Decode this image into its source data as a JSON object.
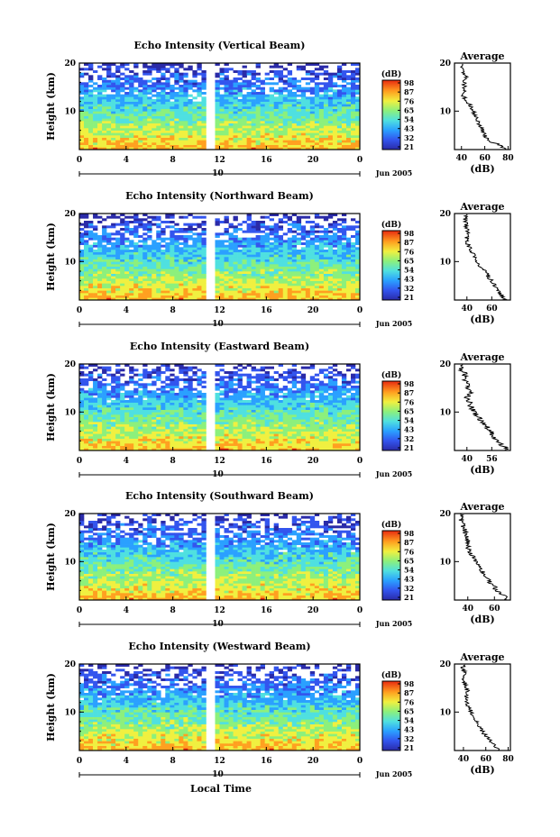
{
  "figure": {
    "xaxis_label": "Local Time"
  },
  "chart_data": [
    {
      "type": "heatmap",
      "title": "Echo Intensity (Vertical Beam)",
      "ylabel": "Height (km)",
      "x_ticks": [
        "0",
        "4",
        "8",
        "12",
        "16",
        "20",
        "0"
      ],
      "date_tick": "10",
      "date_label": "Jun 2005",
      "ylim": [
        2,
        20
      ],
      "y_ticks": [
        "10",
        "20"
      ],
      "xlim_hours": [
        0,
        24
      ],
      "data_gap_hours": [
        11.0,
        11.5
      ],
      "colorbar": {
        "label": "(dB)",
        "ticks": [
          "98",
          "87",
          "76",
          "65",
          "54",
          "43",
          "32",
          "21"
        ]
      },
      "profile": {
        "title": "Average",
        "xlabel": "(dB)",
        "x_ticks": [
          "40",
          "60",
          "80"
        ],
        "xlim": [
          34,
          82
        ],
        "y_ticks": [
          "10",
          "20"
        ],
        "heights": [
          2,
          3,
          4,
          5,
          6,
          7,
          8,
          9,
          10,
          11,
          12,
          13,
          14,
          15,
          16,
          17,
          18,
          19,
          20
        ],
        "values": [
          78,
          72,
          62,
          60,
          58,
          56,
          54,
          52,
          50,
          48,
          45,
          42,
          42,
          43,
          42,
          44,
          41,
          40,
          42
        ]
      }
    },
    {
      "type": "heatmap",
      "title": "Echo Intensity (Northward Beam)",
      "ylabel": "Height (km)",
      "x_ticks": [
        "0",
        "4",
        "8",
        "12",
        "16",
        "20",
        "0"
      ],
      "date_tick": "10",
      "date_label": "Jun 2005",
      "ylim": [
        2,
        20
      ],
      "y_ticks": [
        "10",
        "20"
      ],
      "xlim_hours": [
        0,
        24
      ],
      "data_gap_hours": [
        11.0,
        11.5
      ],
      "colorbar": {
        "label": "(dB)",
        "ticks": [
          "98",
          "87",
          "76",
          "65",
          "54",
          "43",
          "32",
          "21"
        ]
      },
      "profile": {
        "title": "Average",
        "xlabel": "(dB)",
        "x_ticks": [
          "40",
          "60"
        ],
        "xlim": [
          30,
          75
        ],
        "y_ticks": [
          "10",
          "20"
        ],
        "heights": [
          2,
          3,
          4,
          5,
          6,
          7,
          8,
          9,
          10,
          11,
          12,
          13,
          14,
          15,
          16,
          17,
          18,
          19,
          20
        ],
        "values": [
          70,
          68,
          65,
          62,
          60,
          57,
          54,
          50,
          48,
          46,
          44,
          42,
          40,
          40,
          41,
          39,
          40,
          38,
          39
        ]
      }
    },
    {
      "type": "heatmap",
      "title": "Echo Intensity (Eastward Beam)",
      "ylabel": "Height (km)",
      "x_ticks": [
        "0",
        "4",
        "8",
        "12",
        "16",
        "20",
        "0"
      ],
      "date_tick": "10",
      "date_label": "Jun 2005",
      "ylim": [
        2,
        20
      ],
      "y_ticks": [
        "10",
        "20"
      ],
      "xlim_hours": [
        0,
        24
      ],
      "data_gap_hours": [
        11.0,
        11.5
      ],
      "colorbar": {
        "label": "(dB)",
        "ticks": [
          "98",
          "87",
          "76",
          "65",
          "54",
          "43",
          "32",
          "21"
        ]
      },
      "profile": {
        "title": "Average",
        "xlabel": "(dB)",
        "x_ticks": [
          "40",
          "56"
        ],
        "xlim": [
          32,
          68
        ],
        "y_ticks": [
          "10",
          "20"
        ],
        "heights": [
          2,
          3,
          4,
          5,
          6,
          7,
          8,
          9,
          10,
          11,
          12,
          13,
          14,
          15,
          16,
          17,
          18,
          19,
          20
        ],
        "values": [
          66,
          63,
          60,
          57,
          55,
          53,
          50,
          47,
          45,
          43,
          42,
          40,
          42,
          41,
          40,
          38,
          39,
          36,
          37
        ]
      }
    },
    {
      "type": "heatmap",
      "title": "Echo Intensity (Southward Beam)",
      "ylabel": "Height (km)",
      "x_ticks": [
        "0",
        "4",
        "8",
        "12",
        "16",
        "20",
        "0"
      ],
      "date_tick": "10",
      "date_label": "Jun 2005",
      "ylim": [
        2,
        20
      ],
      "y_ticks": [
        "10",
        "20"
      ],
      "xlim_hours": [
        0,
        24
      ],
      "data_gap_hours": [
        11.0,
        11.5
      ],
      "colorbar": {
        "label": "(dB)",
        "ticks": [
          "98",
          "87",
          "76",
          "65",
          "54",
          "43",
          "32",
          "21"
        ]
      },
      "profile": {
        "title": "Average",
        "xlabel": "(dB)",
        "x_ticks": [
          "40",
          "60"
        ],
        "xlim": [
          30,
          72
        ],
        "y_ticks": [
          "10",
          "20"
        ],
        "heights": [
          2,
          3,
          4,
          5,
          6,
          7,
          8,
          9,
          10,
          11,
          12,
          13,
          14,
          15,
          16,
          17,
          18,
          19,
          20
        ],
        "values": [
          70,
          67,
          62,
          59,
          56,
          54,
          51,
          48,
          46,
          44,
          42,
          40,
          40,
          39,
          38,
          37,
          36,
          35,
          35
        ]
      }
    },
    {
      "type": "heatmap",
      "title": "Echo Intensity (Westward Beam)",
      "ylabel": "Height (km)",
      "x_ticks": [
        "0",
        "4",
        "8",
        "12",
        "16",
        "20",
        "0"
      ],
      "date_tick": "10",
      "date_label": "Jun 2005",
      "ylim": [
        2,
        20
      ],
      "y_ticks": [
        "10",
        "20"
      ],
      "xlim_hours": [
        0,
        24
      ],
      "data_gap_hours": [
        11.0,
        11.5
      ],
      "colorbar": {
        "label": "(dB)",
        "ticks": [
          "98",
          "87",
          "76",
          "65",
          "54",
          "43",
          "32",
          "21"
        ]
      },
      "profile": {
        "title": "Average",
        "xlabel": "(dB)",
        "x_ticks": [
          "40",
          "60",
          "80"
        ],
        "xlim": [
          32,
          82
        ],
        "y_ticks": [
          "10",
          "20"
        ],
        "heights": [
          2,
          3,
          4,
          5,
          6,
          7,
          8,
          9,
          10,
          11,
          12,
          13,
          14,
          15,
          16,
          17,
          18,
          19,
          20
        ],
        "values": [
          72,
          68,
          64,
          60,
          57,
          55,
          52,
          49,
          47,
          45,
          43,
          42,
          44,
          43,
          41,
          40,
          42,
          39,
          40
        ]
      }
    }
  ]
}
